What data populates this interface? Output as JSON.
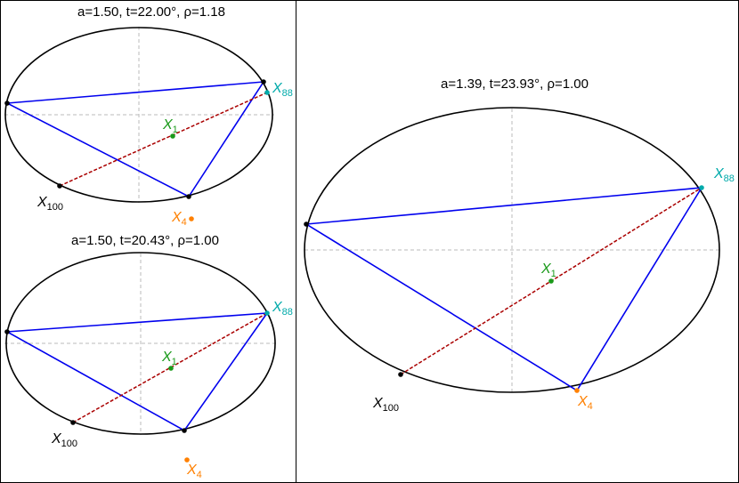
{
  "colors": {
    "frame": "#000000",
    "ellipse": "#000000",
    "axes": "#bbbbbb",
    "triangle": "#0000ee",
    "line": "#aa0000",
    "x1": "#1a9a1a",
    "x4": "#ff8000",
    "x88": "#00aaaa",
    "x100": "#000000"
  },
  "panels": [
    {
      "title": "a=1.50, t=22.00°, ρ=1.18",
      "labels": {
        "x1": [
          "X",
          "1"
        ],
        "x4": [
          "X",
          "4"
        ],
        "x88": [
          "X",
          "88"
        ],
        "x100": [
          "X",
          "100"
        ]
      }
    },
    {
      "title": "a=1.50, t=20.43°, ρ=1.00",
      "labels": {
        "x1": [
          "X",
          "1"
        ],
        "x4": [
          "X",
          "4"
        ],
        "x88": [
          "X",
          "88"
        ],
        "x100": [
          "X",
          "100"
        ]
      }
    },
    {
      "title": "a=1.39, t=23.93°, ρ=1.00",
      "labels": {
        "x1": [
          "X",
          "1"
        ],
        "x4": [
          "X",
          "4"
        ],
        "x88": [
          "X",
          "88"
        ],
        "x100": [
          "X",
          "100"
        ]
      }
    }
  ]
}
